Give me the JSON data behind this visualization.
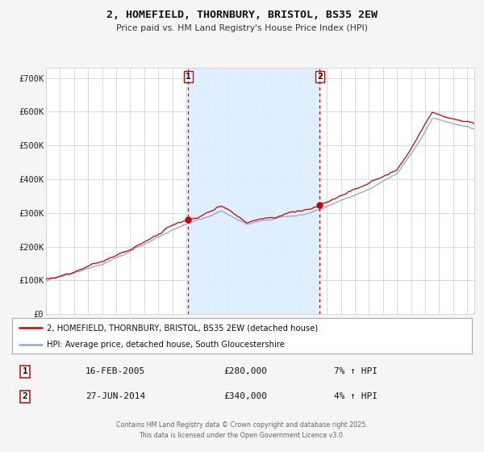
{
  "title": "2, HOMEFIELD, THORNBURY, BRISTOL, BS35 2EW",
  "subtitle": "Price paid vs. HM Land Registry's House Price Index (HPI)",
  "bg_color": "#f5f5f5",
  "plot_bg_color": "#ffffff",
  "line1_color": "#cc0000",
  "line2_color": "#88aacc",
  "shade_color": "#ddeeff",
  "vline_color": "#cc0000",
  "sale1_year": 2005.12,
  "sale2_year": 2014.49,
  "sale1_date": "16-FEB-2005",
  "sale2_date": "27-JUN-2014",
  "sale1_price_str": "£280,000",
  "sale2_price_str": "£340,000",
  "sale1_pct_str": "7% ↑ HPI",
  "sale2_pct_str": "4% ↑ HPI",
  "ylim": [
    0,
    730000
  ],
  "xlim_start": 1995,
  "xlim_end": 2025.5,
  "yticks": [
    0,
    100000,
    200000,
    300000,
    400000,
    500000,
    600000,
    700000
  ],
  "ytick_labels": [
    "£0",
    "£100K",
    "£200K",
    "£300K",
    "£400K",
    "£500K",
    "£600K",
    "£700K"
  ],
  "xticks": [
    1995,
    1996,
    1997,
    1998,
    1999,
    2000,
    2001,
    2002,
    2003,
    2004,
    2005,
    2006,
    2007,
    2008,
    2009,
    2010,
    2011,
    2012,
    2013,
    2014,
    2015,
    2016,
    2017,
    2018,
    2019,
    2020,
    2021,
    2022,
    2023,
    2024,
    2025
  ],
  "legend1_label": "2, HOMEFIELD, THORNBURY, BRISTOL, BS35 2EW (detached house)",
  "legend2_label": "HPI: Average price, detached house, South Gloucestershire",
  "footer_line1": "Contains HM Land Registry data © Crown copyright and database right 2025.",
  "footer_line2": "This data is licensed under the Open Government Licence v3.0."
}
